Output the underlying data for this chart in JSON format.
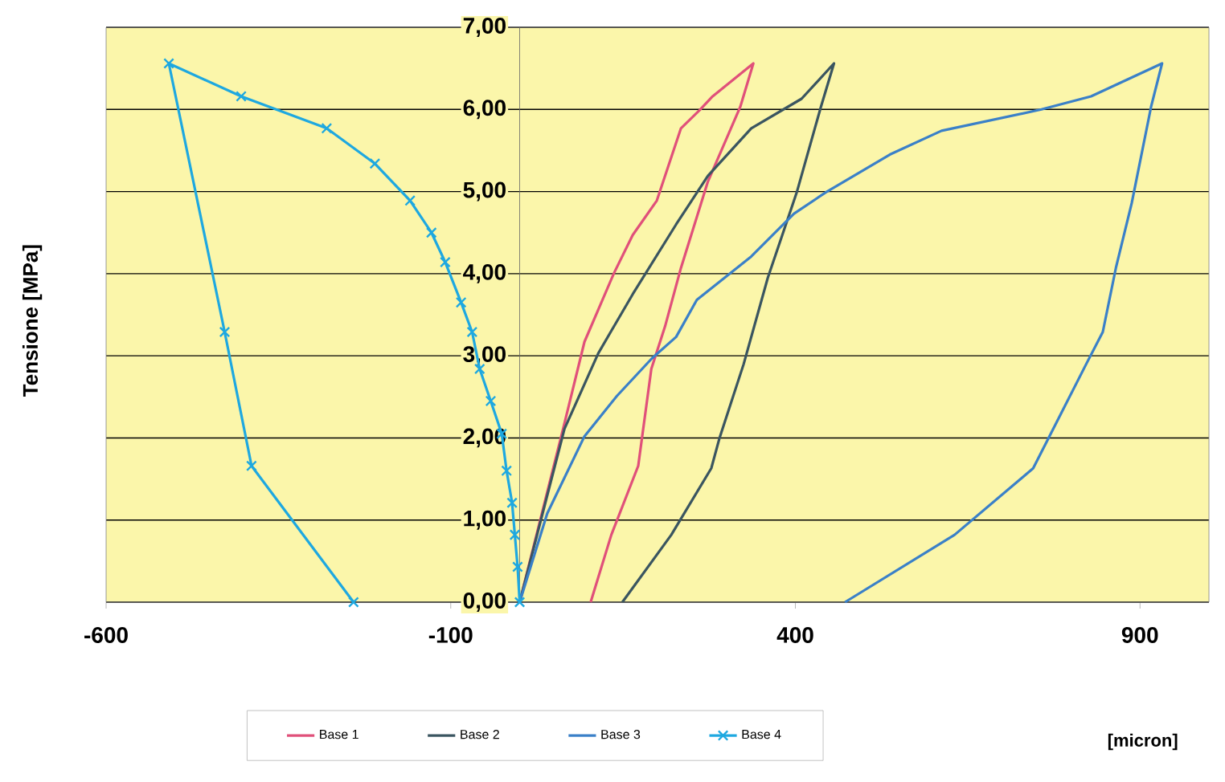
{
  "chart_data": {
    "type": "line",
    "annotations": [
      "[micron]"
    ],
    "ylabel": "Tensione   [MPa]",
    "xlim": [
      -600,
      1000
    ],
    "ylim": [
      0,
      7
    ],
    "xticks": [
      -600,
      -100,
      400,
      900
    ],
    "yticks": [
      {
        "value": 0,
        "label": "0,00"
      },
      {
        "value": 1,
        "label": "1,00"
      },
      {
        "value": 2,
        "label": "2,00"
      },
      {
        "value": 3,
        "label": "3,00"
      },
      {
        "value": 4,
        "label": "4,00"
      },
      {
        "value": 5,
        "label": "5,00"
      },
      {
        "value": 6,
        "label": "6,00"
      },
      {
        "value": 7,
        "label": "7,00"
      }
    ],
    "grid": "y",
    "legend": "bottom",
    "line_style": "solid",
    "series": [
      {
        "name": "Base 1",
        "color": "#e0507a",
        "marker": "none",
        "x": [
          0,
          63,
          94,
          137,
          164,
          199,
          234,
          262,
          280,
          339,
          320,
          273,
          234,
          211,
          191,
          172,
          133,
          103
        ],
        "values": [
          0,
          2.11,
          3.17,
          4.01,
          4.47,
          4.89,
          5.77,
          6.0,
          6.16,
          6.56,
          6.03,
          5.12,
          4.07,
          3.36,
          2.84,
          1.66,
          0.82,
          0
        ]
      },
      {
        "name": "Base 2",
        "color": "#3a5560",
        "marker": "none",
        "x": [
          0,
          65,
          114,
          164,
          227,
          273,
          336,
          409,
          456,
          437,
          402,
          360,
          325,
          290,
          278,
          220,
          149
        ],
        "values": [
          0,
          2.11,
          3.03,
          3.75,
          4.6,
          5.19,
          5.77,
          6.13,
          6.56,
          6.03,
          4.99,
          3.95,
          2.9,
          2.0,
          1.63,
          0.82,
          0
        ]
      },
      {
        "name": "Base 3",
        "color": "#3a80c8",
        "marker": "none",
        "x": [
          0,
          40,
          94,
          141,
          192,
          227,
          257,
          336,
          398,
          444,
          537,
          612,
          757,
          829,
          932,
          916,
          888,
          865,
          846,
          822,
          745,
          631,
          472
        ],
        "values": [
          0,
          1.08,
          2.02,
          2.51,
          2.97,
          3.23,
          3.68,
          4.21,
          4.73,
          4.99,
          5.45,
          5.74,
          6.0,
          6.16,
          6.56,
          6.03,
          4.86,
          4.07,
          3.29,
          2.9,
          1.63,
          0.82,
          0
        ]
      },
      {
        "name": "Base 4",
        "color": "#1ea8e0",
        "marker": "cross",
        "x": [
          0,
          -3,
          -7,
          -11,
          -19,
          -26,
          -42,
          -58,
          -69,
          -85,
          -108,
          -128,
          -159,
          -210,
          -280,
          -404,
          -509,
          -428,
          -389,
          -241
        ],
        "values": [
          0,
          0.43,
          0.82,
          1.21,
          1.6,
          2.05,
          2.45,
          2.84,
          3.29,
          3.65,
          4.14,
          4.5,
          4.89,
          5.34,
          5.77,
          6.16,
          6.56,
          3.29,
          1.66,
          0
        ]
      }
    ]
  }
}
